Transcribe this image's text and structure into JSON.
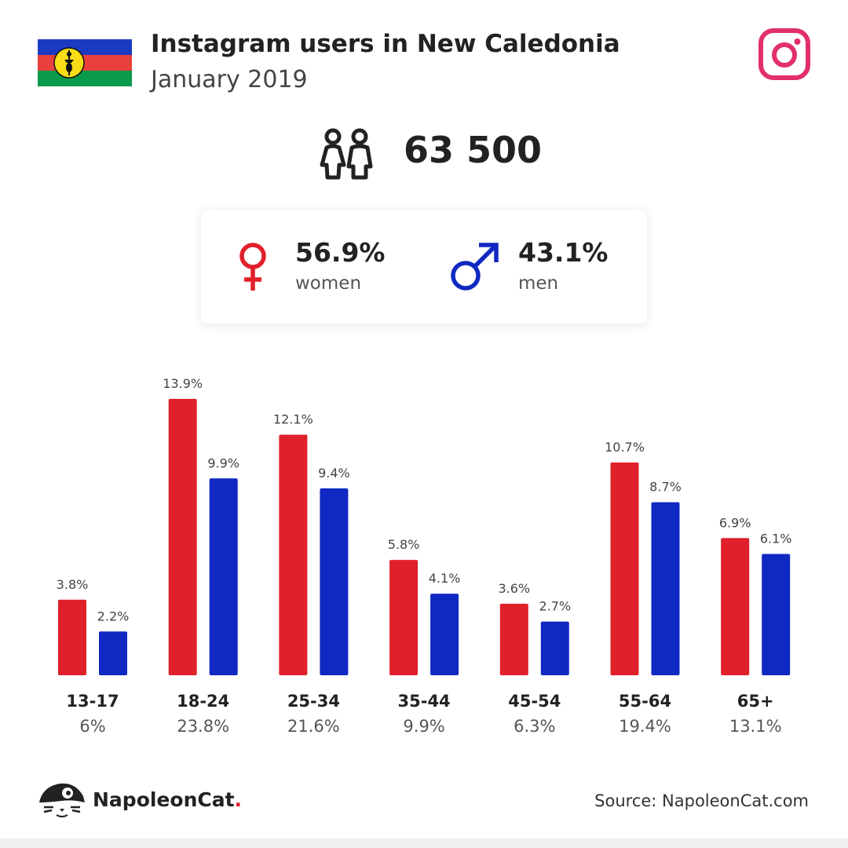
{
  "header": {
    "title": "Instagram users in New Caledonia",
    "subtitle": "January 2019"
  },
  "icons": {
    "flag": "new-caledonia-flag-icon",
    "brand": "instagram-icon",
    "users": "users-icon",
    "female": "female-symbol-icon",
    "male": "male-symbol-icon",
    "logo": "napoleoncat-logo-icon"
  },
  "colors": {
    "women": "#e0202a",
    "men": "#1029c2",
    "instagram": "#e1306c"
  },
  "summary": {
    "total_users": "63 500",
    "women_pct": "56.9%",
    "women_label": "women",
    "men_pct": "43.1%",
    "men_label": "men"
  },
  "chart_data": {
    "type": "bar",
    "categories": [
      "13-17",
      "18-24",
      "25-34",
      "35-44",
      "45-54",
      "55-64",
      "65+"
    ],
    "category_totals": [
      "6%",
      "23.8%",
      "21.6%",
      "9.9%",
      "6.3%",
      "19.4%",
      "13.1%"
    ],
    "series": [
      {
        "key": "women",
        "values": [
          3.8,
          13.9,
          12.1,
          5.8,
          3.6,
          10.7,
          6.9
        ],
        "labels": [
          "3.8%",
          "13.9%",
          "12.1%",
          "5.8%",
          "3.6%",
          "10.7%",
          "6.9%"
        ],
        "color": "#e0202a"
      },
      {
        "key": "men",
        "values": [
          2.2,
          9.9,
          9.4,
          4.1,
          2.7,
          8.7,
          6.1
        ],
        "labels": [
          "2.2%",
          "9.9%",
          "9.4%",
          "4.1%",
          "2.7%",
          "8.7%",
          "6.1%"
        ],
        "color": "#1029c2"
      }
    ],
    "ylim": [
      0,
      13.9
    ],
    "grid": false,
    "legend": "none"
  },
  "footer": {
    "brand_name": "NapoleonCat",
    "brand_dot": ".",
    "source": "Source: NapoleonCat.com"
  }
}
